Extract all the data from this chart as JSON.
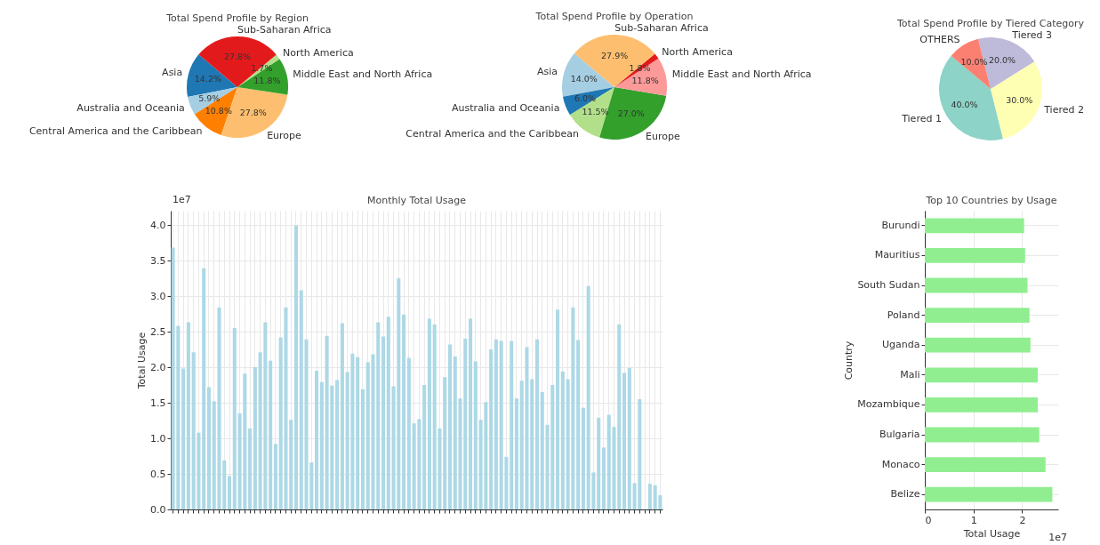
{
  "chart_data": [
    {
      "type": "pie",
      "title": "Total Spend Profile by Region",
      "categories": [
        "Asia",
        "Australia and Oceania",
        "Central America and the Caribbean",
        "Europe",
        "Middle East and North Africa",
        "North America",
        "Sub-Saharan Africa"
      ],
      "values": [
        14.2,
        5.9,
        10.8,
        27.8,
        11.8,
        1.7,
        27.8
      ],
      "colors": [
        "#1f78b4",
        "#a6cee3",
        "#ff7f00",
        "#fdbf6f",
        "#33a02c",
        "#b2df8a",
        "#e31a1c"
      ],
      "value_labels": [
        "14.2%",
        "5.9%",
        "10.8%",
        "27.8%",
        "11.8%",
        "1.7%",
        "27.8%"
      ]
    },
    {
      "type": "pie",
      "title": "Total Spend Profile by Operation",
      "categories": [
        "Asia",
        "Australia and Oceania",
        "Central America and the Caribbean",
        "Europe",
        "Middle East and North Africa",
        "North America",
        "Sub-Saharan Africa"
      ],
      "values": [
        14.0,
        6.0,
        11.5,
        27.0,
        11.8,
        1.8,
        27.9
      ],
      "colors": [
        "#a6cee3",
        "#1f78b4",
        "#b2df8a",
        "#33a02c",
        "#fb9a99",
        "#e31a1c",
        "#fdbf6f"
      ],
      "value_labels": [
        "14.0%",
        "6.0%",
        "11.5%",
        "27.0%",
        "11.8%",
        "1.8%",
        "27.9%"
      ]
    },
    {
      "type": "pie",
      "title": "Total Spend Profile by Tiered Category",
      "categories": [
        "Tiered 1",
        "Tiered 2",
        "Tiered 3",
        "OTHERS"
      ],
      "values": [
        40,
        30,
        20,
        10
      ],
      "colors": [
        "#8dd3c7",
        "#ffffb3",
        "#bebada",
        "#fb8072"
      ],
      "value_labels": [
        "40.0%",
        "30.0%",
        "20.0%",
        "10.0%"
      ]
    },
    {
      "type": "bar",
      "title": "Monthly Total Usage",
      "ylabel": "Total Usage",
      "annotations": [
        "1e7"
      ],
      "color": "#add8e6",
      "grid": true,
      "categories": [
        null,
        null,
        null,
        null,
        null,
        null,
        null,
        null,
        null,
        null,
        null,
        null,
        null,
        null,
        null,
        null,
        null,
        null,
        null,
        null,
        null,
        null,
        null,
        null,
        null,
        null,
        null,
        null,
        null,
        null,
        null,
        null,
        null,
        null,
        null,
        null,
        null,
        null,
        null,
        null,
        null,
        null,
        null,
        null,
        null,
        null,
        null,
        null,
        null,
        null,
        null,
        null,
        null,
        null,
        null,
        null,
        null,
        null,
        null,
        null,
        null,
        null,
        null,
        null,
        null,
        null,
        null,
        null,
        null,
        null,
        null,
        null,
        null,
        null,
        null,
        null,
        null,
        null,
        null,
        null,
        null,
        null,
        null,
        null,
        null,
        null,
        null,
        null,
        null,
        null,
        null,
        null,
        null,
        null,
        null,
        null
      ],
      "values": [
        3.68,
        2.58,
        1.98,
        2.63,
        2.21,
        1.08,
        3.39,
        1.72,
        1.52,
        2.84,
        0.69,
        0.47,
        2.55,
        1.35,
        1.91,
        1.14,
        2.0,
        2.21,
        2.63,
        2.09,
        0.92,
        2.42,
        2.84,
        1.26,
        3.99,
        3.08,
        2.39,
        0.66,
        1.95,
        1.79,
        2.44,
        1.74,
        1.82,
        2.62,
        1.93,
        2.19,
        2.14,
        1.69,
        2.07,
        2.18,
        2.63,
        2.43,
        2.71,
        1.73,
        3.25,
        2.74,
        2.13,
        1.21,
        1.27,
        1.75,
        2.68,
        2.6,
        1.14,
        1.86,
        2.32,
        2.15,
        1.56,
        2.4,
        2.68,
        2.08,
        1.26,
        1.51,
        2.25,
        2.39,
        2.37,
        0.74,
        2.37,
        1.56,
        1.81,
        2.28,
        1.83,
        2.39,
        1.65,
        1.19,
        1.75,
        2.81,
        1.94,
        1.83,
        2.84,
        2.38,
        1.43,
        3.14,
        0.52,
        1.29,
        0.87,
        1.33,
        1.16,
        2.6,
        1.92,
        1.99,
        0.37,
        1.55,
        0,
        0.36,
        0.34,
        0.2
      ],
      "ylim": [
        0,
        4.2
      ],
      "yticks": [
        {
          "value": 0,
          "label": "0.0"
        },
        {
          "value": 0.5,
          "label": "0.5"
        },
        {
          "value": 1,
          "label": "1.0"
        },
        {
          "value": 1.5,
          "label": "1.5"
        },
        {
          "value": 2,
          "label": "2.0"
        },
        {
          "value": 2.5,
          "label": "2.5"
        },
        {
          "value": 3,
          "label": "3.0"
        },
        {
          "value": 3.5,
          "label": "3.5"
        },
        {
          "value": 4,
          "label": "4.0"
        }
      ]
    },
    {
      "type": "bar",
      "orientation": "horizontal",
      "title": "Top 10 Countries by Usage",
      "xlabel": "Total Usage",
      "ylabel": "Country",
      "annotations": [
        "1e7"
      ],
      "color": "#90ee90",
      "grid": true,
      "categories": [
        "Burundi",
        "Mauritius",
        "South Sudan",
        "Poland",
        "Uganda",
        "Mali",
        "Mozambique",
        "Bulgaria",
        "Monaco",
        "Belize"
      ],
      "values": [
        2.04,
        2.06,
        2.11,
        2.15,
        2.17,
        2.32,
        2.32,
        2.35,
        2.48,
        2.62
      ],
      "xlim": [
        0,
        2.74
      ],
      "xticks": [
        0,
        1,
        2
      ]
    }
  ]
}
